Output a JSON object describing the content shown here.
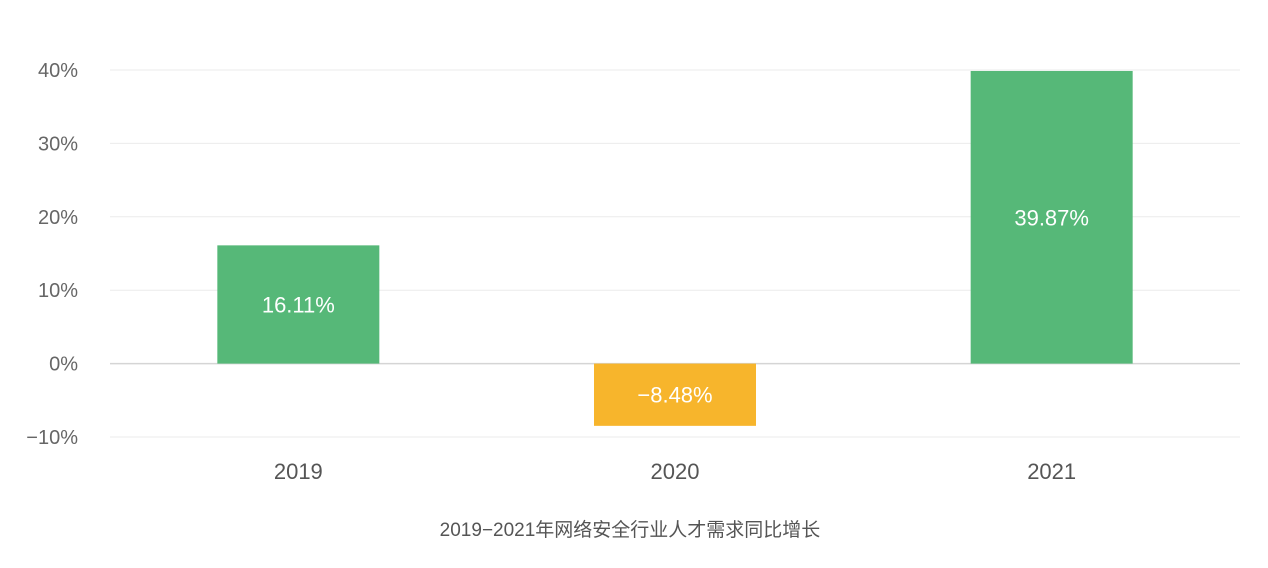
{
  "chart_data": {
    "type": "bar",
    "categories": [
      "2019",
      "2020",
      "2021"
    ],
    "values": [
      16.11,
      -8.48,
      39.87
    ],
    "data_labels": [
      "16.11%",
      "−8.48%",
      "39.87%"
    ],
    "ylim": [
      -10,
      40
    ],
    "yticks": [
      40,
      30,
      20,
      10,
      0,
      -10
    ],
    "ytick_labels": [
      "40%",
      "30%",
      "20%",
      "10%",
      "0%",
      "−10%"
    ],
    "caption": "2019−2021年网络安全行业人才需求同比增长",
    "grid": true,
    "colors": {
      "positive": "#56B878",
      "negative": "#F7B52C",
      "grid": "#EBEBEB",
      "zero_line": "#D5D5D5"
    }
  }
}
